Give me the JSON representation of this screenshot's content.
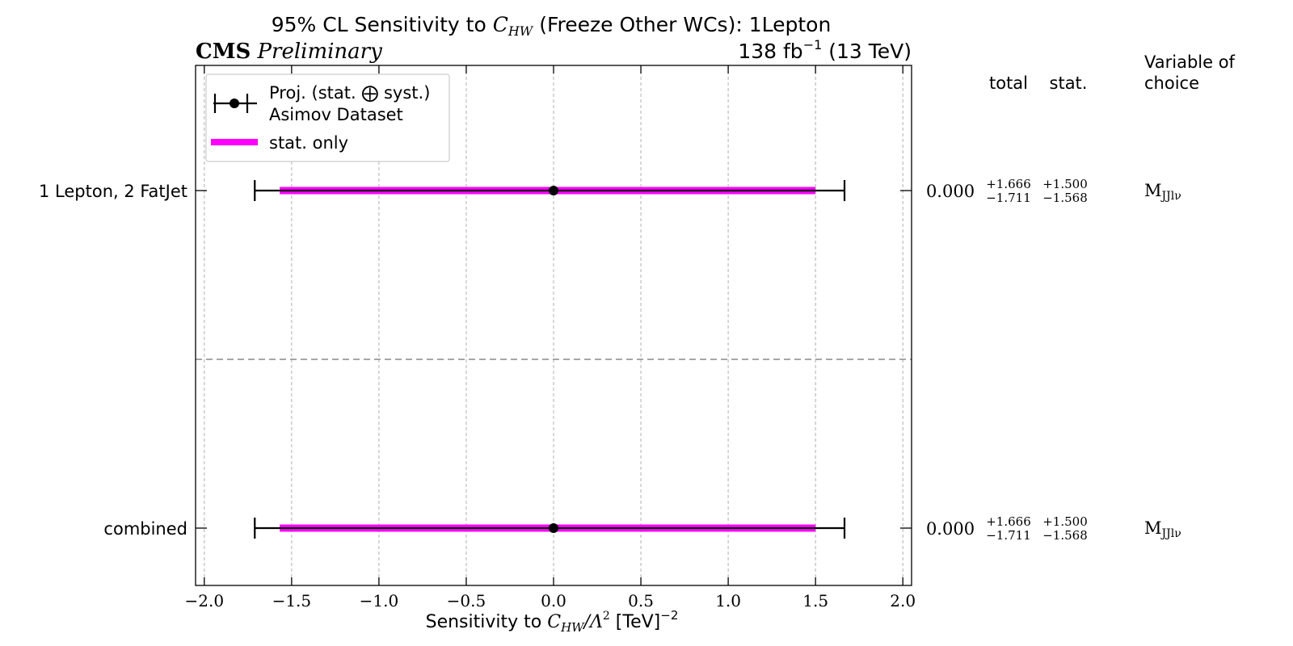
{
  "chart_data": {
    "type": "errorbar",
    "title_prefix": "95% CL Sensitivity to ",
    "title_symbol": "C",
    "title_symbol_sub": "HW",
    "title_suffix": " (Freeze Other WCs): 1Lepton",
    "cms_label": "CMS",
    "cms_sublabel": "Preliminary",
    "lumi_prefix": "138 fb",
    "lumi_exp": "−1",
    "lumi_suffix": " (13 TeV)",
    "xlabel_prefix": "Sensitivity to ",
    "xlabel_symbol": "C",
    "xlabel_symbol_sub": "HW",
    "xlabel_mid": "/Λ",
    "xlabel_mid_exp": "2",
    "xlabel_suffix": " [TeV]",
    "xlabel_suffix_exp": "−2",
    "xlim": [
      -2.05,
      2.05
    ],
    "xticks": [
      -2.0,
      -1.5,
      -1.0,
      -0.5,
      0.0,
      0.5,
      1.0,
      1.5,
      2.0
    ],
    "xtick_labels": [
      "−2.0",
      "−1.5",
      "−1.0",
      "−0.5",
      "0.0",
      "0.5",
      "1.0",
      "1.5",
      "2.0"
    ],
    "grid": "x-dashed",
    "legend": {
      "placement": "top-left",
      "entries": [
        {
          "line1": "Proj. (stat. ⨁ syst.)",
          "line2": "Asimov Dataset",
          "color": "#000000"
        },
        {
          "line1": "stat. only",
          "line2": "",
          "color": "#ff00ff"
        }
      ]
    },
    "table_headers": {
      "total": "total",
      "stat": "stat.",
      "variable_line1": "Variable of",
      "variable_line2": "choice"
    },
    "rows": [
      {
        "label": "1 Lepton, 2 FatJet",
        "central": 0.0,
        "central_text": "0.000",
        "total_up": 1.666,
        "total_down": -1.711,
        "stat_up": 1.5,
        "stat_down": -1.568,
        "total_up_text": "+1.666",
        "total_down_text": "−1.711",
        "stat_up_text": "+1.500",
        "stat_down_text": "−1.568",
        "variable_main": "M",
        "variable_sub": "JJlν"
      },
      {
        "label": "combined",
        "central": 0.0,
        "central_text": "0.000",
        "total_up": 1.666,
        "total_down": -1.711,
        "stat_up": 1.5,
        "stat_down": -1.568,
        "total_up_text": "+1.666",
        "total_down_text": "−1.711",
        "stat_up_text": "+1.500",
        "stat_down_text": "−1.568",
        "variable_main": "M",
        "variable_sub": "JJlν"
      }
    ],
    "colors": {
      "total": "#000000",
      "stat": "#ff00ff",
      "separator": "#999999",
      "grid": "#b0b0b0"
    }
  }
}
